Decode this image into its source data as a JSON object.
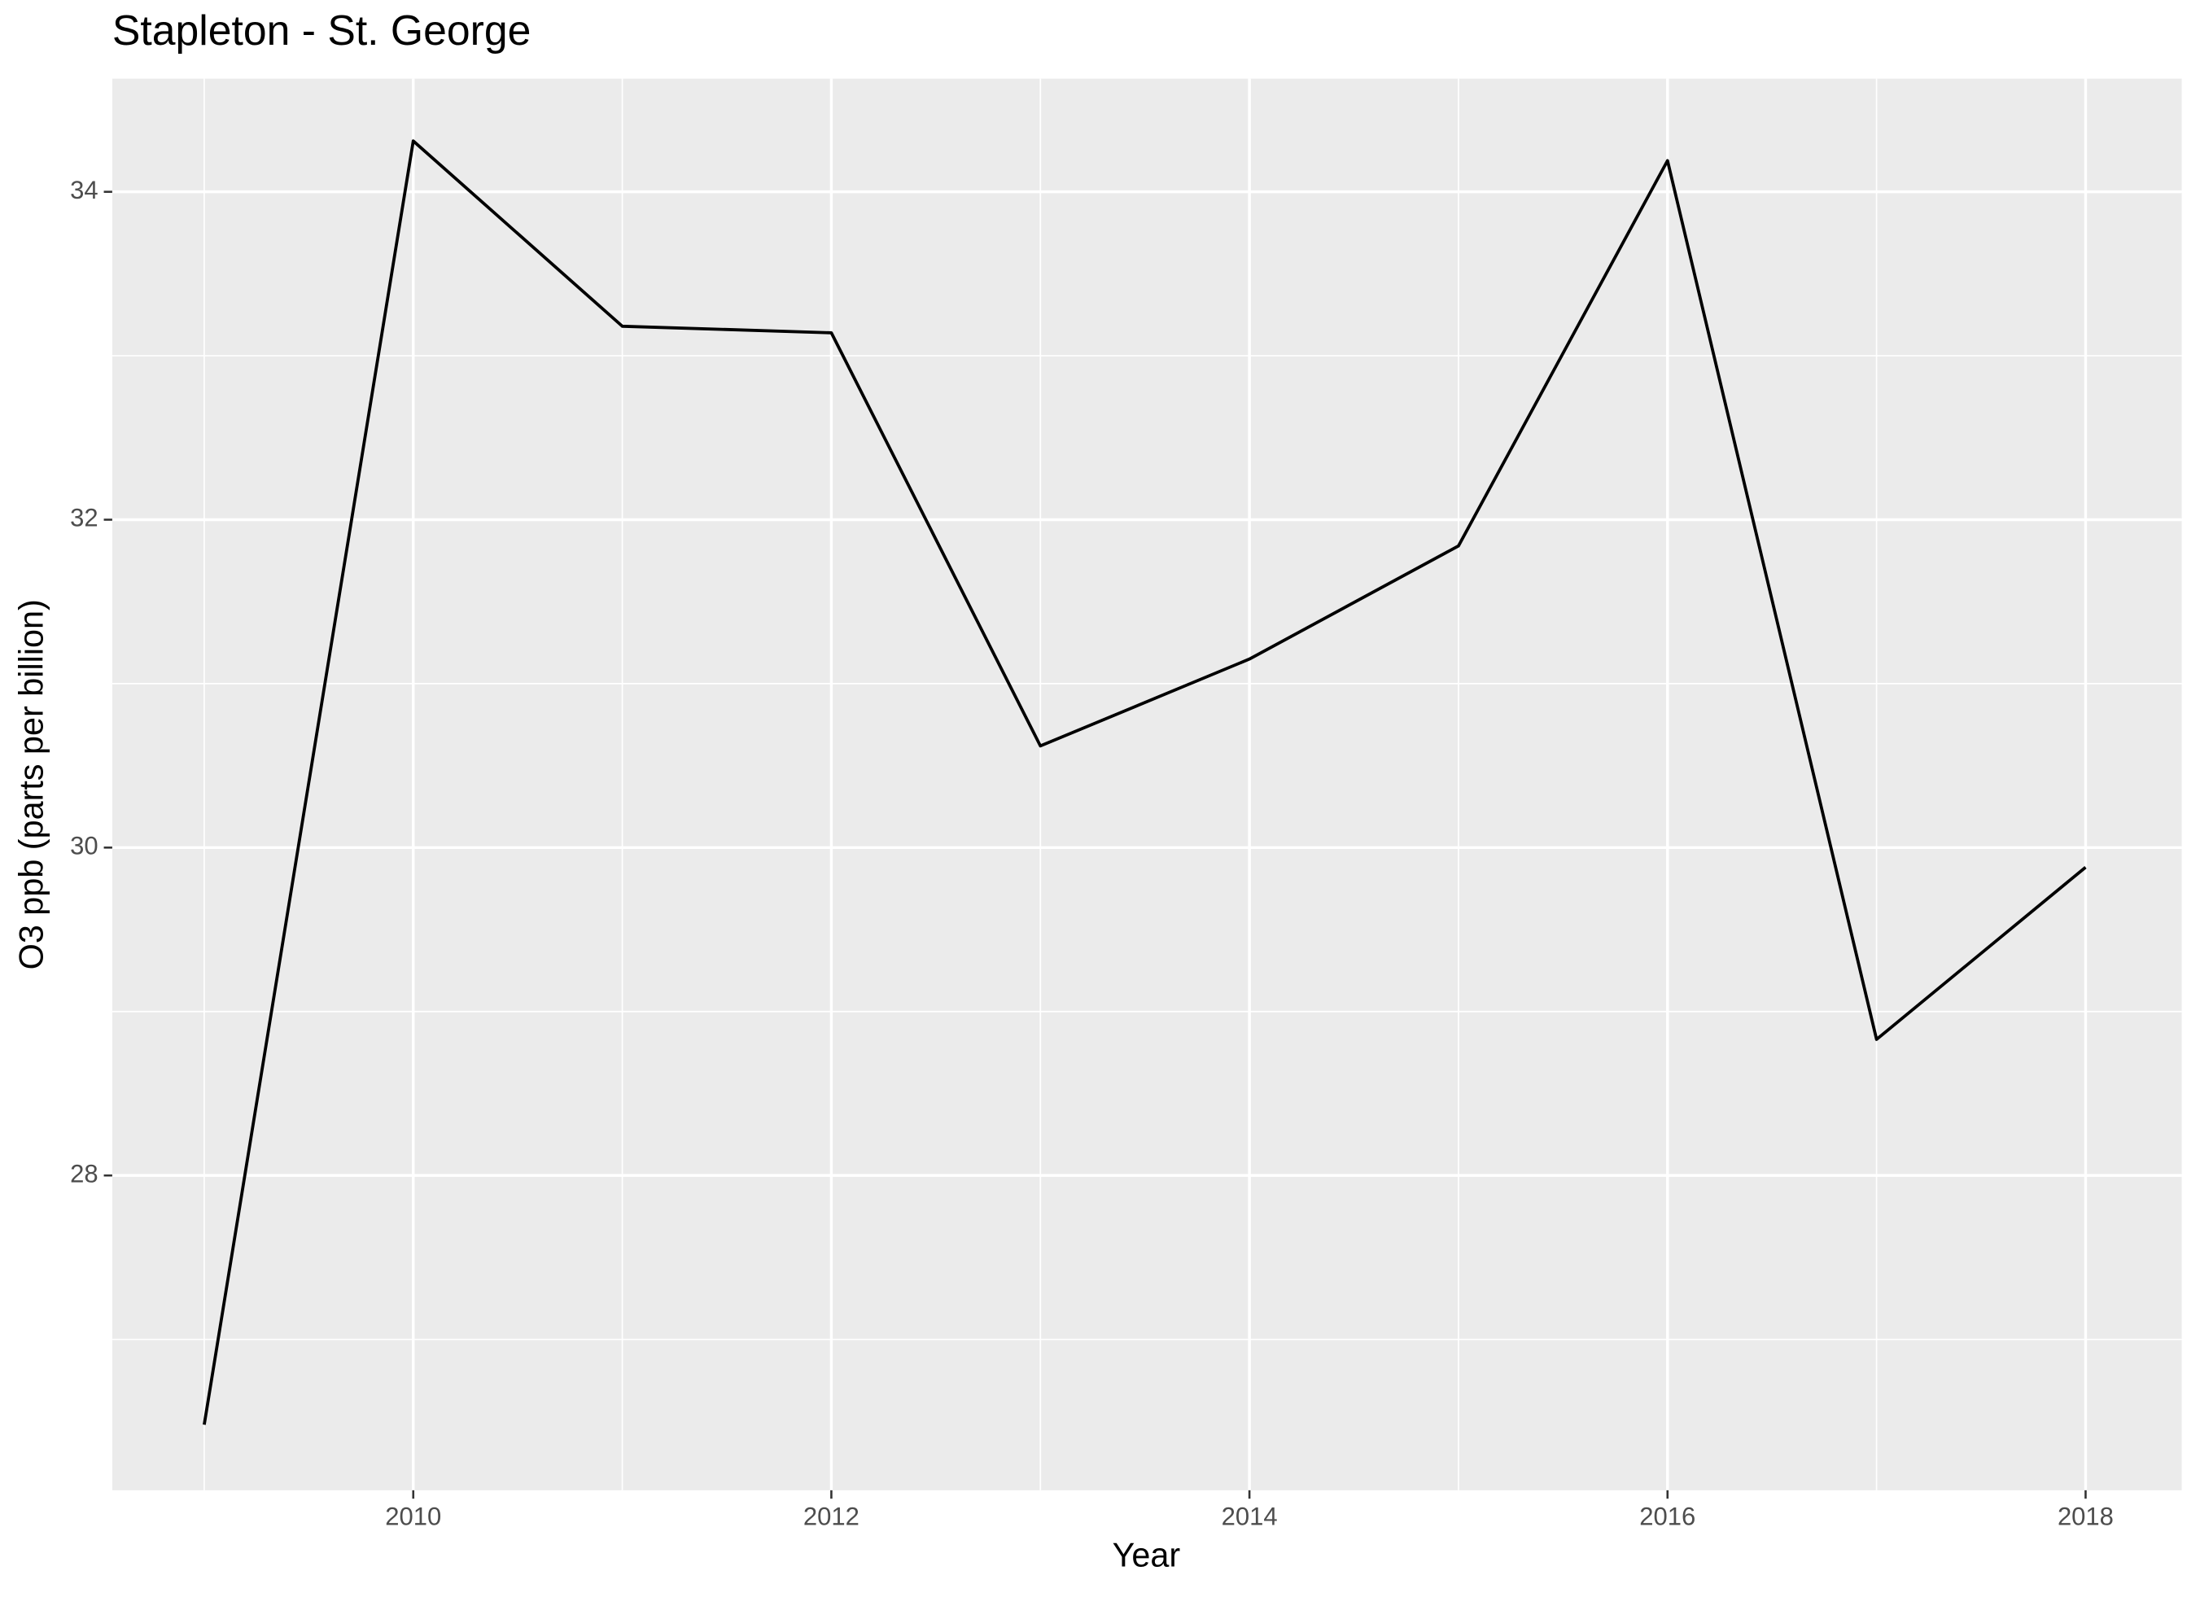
{
  "chart_data": {
    "type": "line",
    "title": "Stapleton - St. George",
    "x_label": "Year",
    "y_label": "O3 ppb (parts per billion)",
    "x": [
      2009,
      2010,
      2011,
      2012,
      2013,
      2014,
      2015,
      2016,
      2017,
      2018
    ],
    "series": [
      {
        "name": "Stapleton - St. George",
        "color": "#000000",
        "values": [
          26.48,
          34.31,
          33.18,
          33.14,
          30.62,
          31.15,
          31.84,
          34.19,
          28.83,
          29.88
        ]
      }
    ],
    "xlim": [
      2008.56,
      2018.46
    ],
    "xticks": [
      2010,
      2012,
      2014,
      2016,
      2018
    ],
    "ylim": [
      26.08,
      34.69
    ],
    "yticks": [
      28,
      30,
      32,
      34
    ],
    "grid": true
  }
}
